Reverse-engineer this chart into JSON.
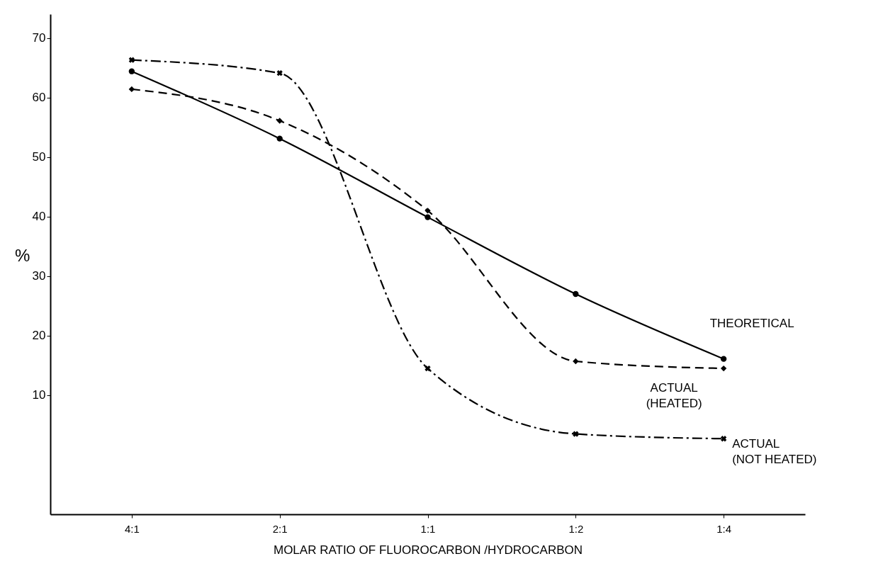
{
  "chart_data": {
    "type": "line",
    "xlabel": "MOLAR RATIO OF FLUOROCARBON /HYDROCARBON",
    "ylabel": "%",
    "categories": [
      "4:1",
      "2:1",
      "1:1",
      "1:2",
      "1:4"
    ],
    "ylim": [
      -10,
      74
    ],
    "yticks": [
      10,
      20,
      30,
      40,
      50,
      60,
      70
    ],
    "series": [
      {
        "name": "THEORETICAL",
        "color": "#000000",
        "marker": "circle",
        "line_style": "solid",
        "values": [
          64.4,
          53.1,
          39.9,
          27,
          16.1
        ]
      },
      {
        "name": "ACTUAL (HEATED)",
        "color": "#000000",
        "marker": "diamond",
        "line_style": "dashed",
        "values": [
          61.4,
          56.1,
          41,
          15.7,
          14.5
        ]
      },
      {
        "name": "ACTUAL (NOT HEATED)",
        "color": "#000000",
        "marker": "cross",
        "line_style": "dotted",
        "values": [
          66.3,
          64.1,
          14.5,
          3.5,
          2.7
        ]
      }
    ]
  }
}
